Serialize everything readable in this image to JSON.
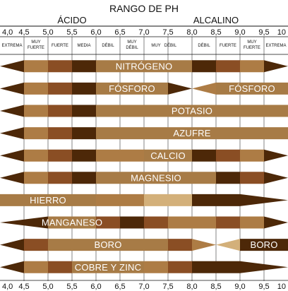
{
  "chart_data": {
    "type": "table",
    "title": "RANGO DE PH",
    "side_labels": {
      "acid": "ÁCIDO",
      "alkaline": "ALCALINO"
    },
    "x_ticks": [
      "4,0",
      "4,5",
      "5,0",
      "5,5",
      "6,0",
      "6,5",
      "7,0",
      "7,5",
      "8,0",
      "8,5",
      "9,0",
      "9,5",
      "10"
    ],
    "x_values": [
      4.0,
      4.5,
      5.0,
      5.5,
      6.0,
      6.5,
      7.0,
      7.5,
      8.0,
      8.5,
      9.0,
      9.5,
      10.0
    ],
    "xlim": [
      4.0,
      10.0
    ],
    "intensity_labels": [
      {
        "text": "EXTREMA",
        "lines": [
          "EXTREMA"
        ],
        "ph": 4.25
      },
      {
        "text": "MUY FUERTE",
        "lines": [
          "MUY",
          "FUERTE"
        ],
        "ph": 4.75
      },
      {
        "text": "FUERTE",
        "lines": [
          "FUERTE"
        ],
        "ph": 5.25
      },
      {
        "text": "MEDIA",
        "lines": [
          "MEDIA"
        ],
        "ph": 5.75
      },
      {
        "text": "DÉBIL",
        "lines": [
          "DÉBIL"
        ],
        "ph": 6.25
      },
      {
        "text": "MUY DÉBIL",
        "lines": [
          "MUY",
          "DÉBIL"
        ],
        "ph": 6.75
      },
      {
        "text": "MUY",
        "lines": [
          "MUY"
        ],
        "ph": 7.25
      },
      {
        "text": "DÉBIL",
        "lines": [
          "DÉBIL"
        ],
        "ph": 7.55
      },
      {
        "text": "DÉBIL",
        "lines": [
          "DÉBIL"
        ],
        "ph": 8.25
      },
      {
        "text": "FUERTE",
        "lines": [
          "FUERTE"
        ],
        "ph": 8.75
      },
      {
        "text": "MUY FUERTE",
        "lines": [
          "MUY",
          "FUERTE"
        ],
        "ph": 9.25
      },
      {
        "text": "EXTREMA",
        "lines": [
          "EXTREMA"
        ],
        "ph": 9.75
      }
    ],
    "colors": {
      "very_low": "#d3b07a",
      "low": "#ad7c45",
      "medium": "#8a4e24",
      "high": "#4d2808",
      "max": "#a77b46"
    },
    "series": [
      {
        "name": "NITRÓGENO",
        "segments": [
          {
            "from": 4.0,
            "to": 4.5,
            "level": "high",
            "taper": "left"
          },
          {
            "from": 4.5,
            "to": 5.0,
            "level": "low"
          },
          {
            "from": 5.0,
            "to": 5.5,
            "level": "medium"
          },
          {
            "from": 5.5,
            "to": 6.0,
            "level": "high"
          },
          {
            "from": 6.0,
            "to": 8.0,
            "level": "max"
          },
          {
            "from": 8.0,
            "to": 8.5,
            "level": "high"
          },
          {
            "from": 8.5,
            "to": 9.0,
            "level": "medium"
          },
          {
            "from": 9.0,
            "to": 9.5,
            "level": "low"
          },
          {
            "from": 9.5,
            "to": 10.0,
            "level": "high",
            "taper": "right"
          }
        ]
      },
      {
        "name": "FÓSFORO",
        "segments": [
          {
            "from": 4.0,
            "to": 4.5,
            "level": "high",
            "taper": "left"
          },
          {
            "from": 4.5,
            "to": 5.0,
            "level": "low"
          },
          {
            "from": 5.0,
            "to": 5.5,
            "level": "medium"
          },
          {
            "from": 5.5,
            "to": 6.0,
            "level": "high"
          },
          {
            "from": 6.0,
            "to": 7.5,
            "level": "max"
          },
          {
            "from": 7.5,
            "to": 8.0,
            "level": "high",
            "taper": "right"
          },
          {
            "from": 8.0,
            "to": 8.5,
            "level": "low",
            "taper": "left"
          },
          {
            "from": 8.5,
            "to": 10.0,
            "level": "max",
            "label": "FÓSFORO"
          }
        ]
      },
      {
        "name": "POTASIO",
        "segments": [
          {
            "from": 4.0,
            "to": 4.5,
            "level": "high",
            "taper": "left"
          },
          {
            "from": 4.5,
            "to": 5.0,
            "level": "low"
          },
          {
            "from": 5.0,
            "to": 5.5,
            "level": "medium"
          },
          {
            "from": 5.5,
            "to": 6.0,
            "level": "high"
          },
          {
            "from": 6.0,
            "to": 10.0,
            "level": "max"
          }
        ]
      },
      {
        "name": "AZUFRE",
        "segments": [
          {
            "from": 4.0,
            "to": 4.5,
            "level": "high",
            "taper": "left"
          },
          {
            "from": 4.5,
            "to": 5.0,
            "level": "low"
          },
          {
            "from": 5.0,
            "to": 5.5,
            "level": "medium"
          },
          {
            "from": 5.5,
            "to": 6.0,
            "level": "high"
          },
          {
            "from": 6.0,
            "to": 10.0,
            "level": "max"
          }
        ]
      },
      {
        "name": "CALCIO",
        "segments": [
          {
            "from": 4.0,
            "to": 4.5,
            "level": "high",
            "taper": "left"
          },
          {
            "from": 4.5,
            "to": 5.0,
            "level": "low"
          },
          {
            "from": 5.0,
            "to": 5.5,
            "level": "medium"
          },
          {
            "from": 5.5,
            "to": 6.0,
            "level": "high"
          },
          {
            "from": 6.0,
            "to": 7.0,
            "level": "low"
          },
          {
            "from": 7.0,
            "to": 8.0,
            "level": "max"
          },
          {
            "from": 8.0,
            "to": 8.5,
            "level": "high"
          },
          {
            "from": 8.5,
            "to": 9.0,
            "level": "medium"
          },
          {
            "from": 9.0,
            "to": 9.5,
            "level": "low"
          },
          {
            "from": 9.5,
            "to": 10.0,
            "level": "high",
            "taper": "right"
          }
        ]
      },
      {
        "name": "MAGNESIO",
        "segments": [
          {
            "from": 4.0,
            "to": 4.5,
            "level": "high",
            "taper": "left"
          },
          {
            "from": 4.5,
            "to": 5.0,
            "level": "low"
          },
          {
            "from": 5.0,
            "to": 5.5,
            "level": "medium"
          },
          {
            "from": 5.5,
            "to": 6.0,
            "level": "high"
          },
          {
            "from": 6.0,
            "to": 8.5,
            "level": "max"
          },
          {
            "from": 8.5,
            "to": 9.0,
            "level": "high"
          },
          {
            "from": 9.0,
            "to": 9.5,
            "level": "medium"
          },
          {
            "from": 9.5,
            "to": 10.0,
            "level": "high",
            "taper": "right"
          }
        ]
      },
      {
        "name": "HIERRO",
        "segments": [
          {
            "from": 4.0,
            "to": 6.0,
            "level": "max"
          },
          {
            "from": 6.0,
            "to": 7.0,
            "level": "low"
          },
          {
            "from": 7.0,
            "to": 8.0,
            "level": "very_low"
          },
          {
            "from": 8.0,
            "to": 9.0,
            "level": "high"
          },
          {
            "from": 9.0,
            "to": 10.0,
            "level": "high",
            "taper": "right"
          }
        ]
      },
      {
        "name": "MANGANESO",
        "segments": [
          {
            "from": 4.0,
            "to": 5.0,
            "level": "high",
            "taper": "left"
          },
          {
            "from": 5.0,
            "to": 6.0,
            "level": "max"
          },
          {
            "from": 6.0,
            "to": 6.5,
            "level": "medium"
          },
          {
            "from": 6.5,
            "to": 7.0,
            "level": "high"
          },
          {
            "from": 7.0,
            "to": 7.5,
            "level": "medium"
          },
          {
            "from": 7.5,
            "to": 8.5,
            "level": "low"
          },
          {
            "from": 8.5,
            "to": 9.0,
            "level": "medium"
          },
          {
            "from": 9.0,
            "to": 9.5,
            "level": "low"
          },
          {
            "from": 9.5,
            "to": 10.0,
            "level": "high",
            "taper": "right"
          }
        ]
      },
      {
        "name": "BORO",
        "segments": [
          {
            "from": 4.0,
            "to": 4.5,
            "level": "high",
            "taper": "left"
          },
          {
            "from": 4.5,
            "to": 5.0,
            "level": "medium"
          },
          {
            "from": 5.0,
            "to": 7.5,
            "level": "max"
          },
          {
            "from": 7.5,
            "to": 8.0,
            "level": "medium"
          },
          {
            "from": 8.0,
            "to": 8.5,
            "level": "low",
            "taper": "right"
          },
          {
            "from": 8.5,
            "to": 9.0,
            "level": "very_low",
            "taper": "left"
          },
          {
            "from": 9.0,
            "to": 10.0,
            "level": "high",
            "label": "BORO"
          }
        ]
      },
      {
        "name": "COBRE Y ZINC",
        "segments": [
          {
            "from": 4.0,
            "to": 4.5,
            "level": "high",
            "taper": "left"
          },
          {
            "from": 4.5,
            "to": 5.0,
            "level": "low"
          },
          {
            "from": 5.0,
            "to": 5.5,
            "level": "medium"
          },
          {
            "from": 5.5,
            "to": 7.0,
            "level": "max"
          },
          {
            "from": 7.0,
            "to": 7.5,
            "level": "low"
          },
          {
            "from": 7.5,
            "to": 8.0,
            "level": "medium"
          },
          {
            "from": 8.0,
            "to": 9.0,
            "level": "high"
          },
          {
            "from": 9.0,
            "to": 10.0,
            "level": "high",
            "taper": "right"
          }
        ]
      }
    ]
  }
}
